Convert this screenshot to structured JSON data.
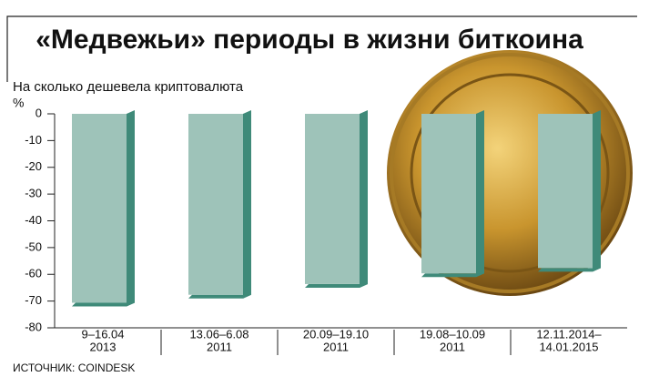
{
  "chart_data": {
    "type": "bar",
    "title": "«Медвежьи» периоды в жизни биткоина",
    "subtitle": "На сколько дешевела криптовалюта",
    "y_label": "%",
    "source": "ИСТОЧНИК: COINDESK",
    "categories": [
      [
        "9–16.04",
        "2013"
      ],
      [
        "13.06–6.08",
        "2011"
      ],
      [
        "20.09–19.10",
        "2011"
      ],
      [
        "19.08–10.09",
        "2011"
      ],
      [
        "12.11.2014–",
        "14.01.2015"
      ]
    ],
    "values": [
      -72,
      -69,
      -65,
      -61,
      -59
    ],
    "color": "#9ec3b9",
    "side_color": "#3f8a79",
    "ylim": [
      -80,
      0
    ],
    "yticks": [
      0,
      -10,
      -20,
      -30,
      -40,
      -50,
      -60,
      -70,
      -80
    ]
  }
}
